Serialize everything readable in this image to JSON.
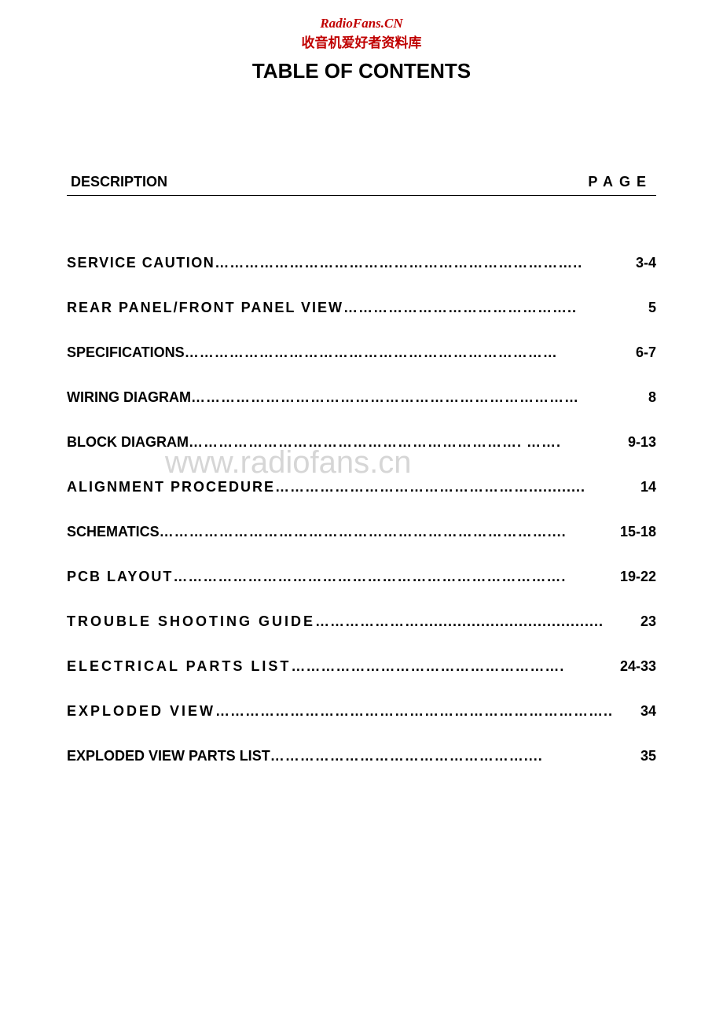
{
  "watermark": {
    "title": "RadioFans.CN",
    "subtitle": "收音机爱好者资料库",
    "overlay": "www.radiofans.cn"
  },
  "title": "TABLE OF CONTENTS",
  "headers": {
    "description": "DESCRIPTION",
    "page": "PAGE"
  },
  "entries": [
    {
      "label": "SERVICE CAUTION",
      "dots": "………………………………………………………………..",
      "page": "3-4",
      "spacing": "spacing-1"
    },
    {
      "label": "REAR PANEL/FRONT PANEL VIEW",
      "dots": "………………………………………..",
      "page": "5",
      "spacing": "spacing-2"
    },
    {
      "label": "SPECIFICATIONS",
      "dots": "…………………………………………………………………",
      "page": "6-7",
      "spacing": ""
    },
    {
      "label": "WIRING DIAGRAM",
      "dots": "……………………………………………………………………",
      "page": "8",
      "spacing": ""
    },
    {
      "label": "BLOCK DIAGRAM",
      "dots": "…………………………………………………………. …….",
      "page": "9-13",
      "spacing": ""
    },
    {
      "label": "ALIGNMENT PROCEDURE",
      "dots": "……………………………………………............",
      "page": "14",
      "spacing": "spacing-2"
    },
    {
      "label": "SCHEMATICS",
      "dots": "……………………………………………………………………....",
      "page": "15-18",
      "spacing": ""
    },
    {
      "label": "PCB LAYOUT",
      "dots": "…………………………………………………………………….",
      "page": "19-22",
      "spacing": "spacing-2"
    },
    {
      "label": "TROUBLE SHOOTING GUIDE",
      "dots": "………………….......................................",
      "page": "23",
      "spacing": "spacing-3"
    },
    {
      "label": "ELECTRICAL PARTS LIST",
      "dots": "……………………………………………….",
      "page": "24-33",
      "spacing": "spacing-3"
    },
    {
      "label": "EXPLODED VIEW",
      "dots": "……………………………………………………………………..",
      "page": "34",
      "spacing": "spacing-3"
    },
    {
      "label": "EXPLODED VIEW PARTS LIST",
      "dots": "……………………………………………....",
      "page": "35",
      "spacing": ""
    }
  ],
  "colors": {
    "watermark_red": "#c00000",
    "watermark_gray": "rgba(180, 180, 180, 0.55)",
    "text_black": "#000000",
    "background": "#ffffff"
  }
}
